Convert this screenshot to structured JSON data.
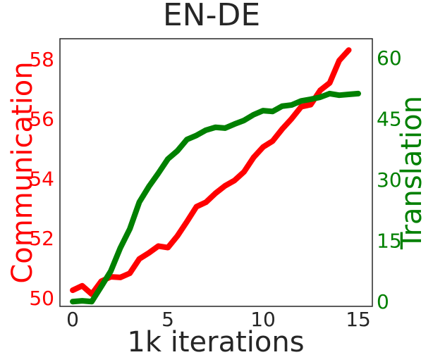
{
  "chart_data": {
    "type": "line",
    "title": "EN-DE",
    "xlabel": "1k iterations",
    "ylabel": "Communication",
    "y2label": "Translation",
    "ylabel_color": "#ff0000",
    "y2label_color": "#008000",
    "x": [
      0,
      0.5,
      1,
      1.5,
      2,
      2.5,
      3,
      3.5,
      4,
      4.5,
      5,
      5.5,
      6,
      6.5,
      7,
      7.5,
      8,
      8.5,
      9,
      9.5,
      10,
      10.5,
      11,
      11.5,
      12,
      12.5,
      13,
      13.5,
      14,
      14.5,
      15
    ],
    "series": [
      {
        "color": "#ff0000",
        "axis": "y",
        "values": [
          50.3,
          50.45,
          50.17,
          50.6,
          50.75,
          50.73,
          50.87,
          51.35,
          51.55,
          51.78,
          51.73,
          52.12,
          52.6,
          53.1,
          53.25,
          53.55,
          53.8,
          53.98,
          54.27,
          54.75,
          55.1,
          55.3,
          55.7,
          56.05,
          56.45,
          56.52,
          57.0,
          57.25,
          58.0,
          58.35,
          null
        ]
      },
      {
        "color": "#008000",
        "axis": "y2",
        "values": [
          0.3,
          0.5,
          0.3,
          4,
          7.8,
          13.5,
          18.2,
          24.8,
          28.6,
          31.9,
          35.4,
          37.4,
          40.2,
          41.2,
          42.5,
          43.2,
          43,
          44,
          44.9,
          46.3,
          47.3,
          47.1,
          48.4,
          48.7,
          49.7,
          50.1,
          50.6,
          51.5,
          51.1,
          51.3,
          51.5
        ]
      }
    ],
    "xlim": [
      -0.67,
      15.74
    ],
    "xticks": [
      0,
      5,
      10,
      15
    ],
    "ylim": [
      49.76,
      58.73
    ],
    "yticks": [
      50,
      52,
      54,
      56,
      58
    ],
    "y2lim": [
      -0.87,
      65
    ],
    "y2ticks": [
      0,
      15,
      30,
      45,
      60
    ],
    "grid": false
  }
}
